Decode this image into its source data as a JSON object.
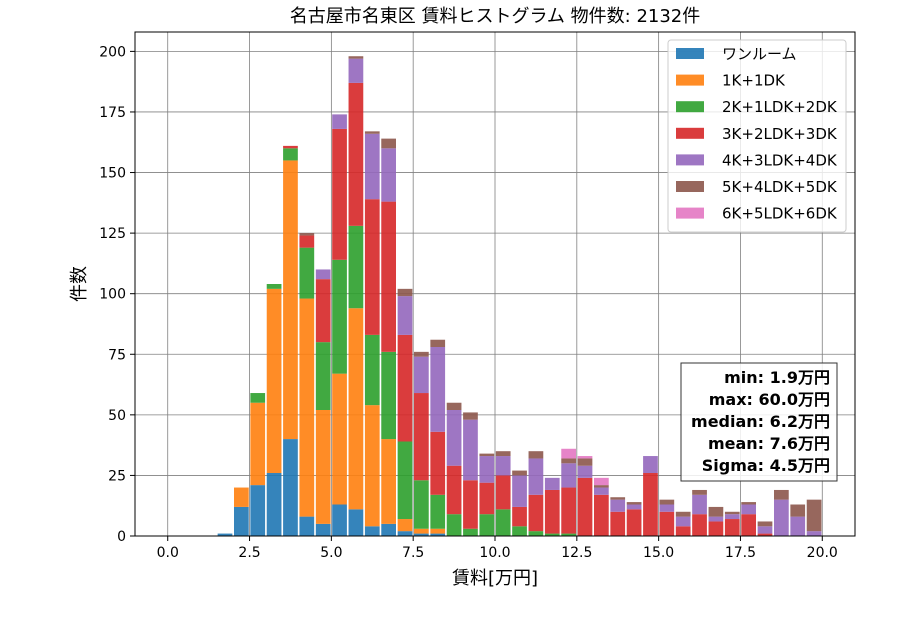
{
  "chart_data": {
    "type": "bar",
    "stacked": true,
    "title": "名古屋市名東区 賃料ヒストグラム  物件数: 2132件",
    "xlabel": "賃料[万円]",
    "ylabel": "件数",
    "xlim": [
      -1.0,
      21.0
    ],
    "ylim": [
      0,
      208
    ],
    "xticks": [
      0.0,
      2.5,
      5.0,
      7.5,
      10.0,
      12.5,
      15.0,
      17.5,
      20.0
    ],
    "xtick_labels": [
      "0.0",
      "2.5",
      "5.0",
      "7.5",
      "10.0",
      "12.5",
      "15.0",
      "17.5",
      "20.0"
    ],
    "yticks": [
      0,
      25,
      50,
      75,
      100,
      125,
      150,
      175,
      200
    ],
    "ytick_labels": [
      "0",
      "25",
      "50",
      "75",
      "100",
      "125",
      "150",
      "175",
      "200"
    ],
    "grid": true,
    "legend_position": "top-right",
    "bin_width": 0.5,
    "x": [
      1.0,
      1.5,
      2.0,
      2.5,
      3.0,
      3.5,
      4.0,
      4.5,
      5.0,
      5.5,
      6.0,
      6.5,
      7.0,
      7.5,
      8.0,
      8.5,
      9.0,
      9.5,
      10.0,
      10.5,
      11.0,
      11.5,
      12.0,
      12.5,
      13.0,
      13.5,
      14.0,
      14.5,
      15.0,
      15.5,
      16.0,
      16.5,
      17.0,
      17.5,
      18.0,
      18.5,
      19.0,
      19.5
    ],
    "series": [
      {
        "name": "ワンルーム",
        "color": "#1f77b4",
        "values": [
          0,
          1,
          12,
          21,
          26,
          40,
          8,
          5,
          13,
          11,
          4,
          5,
          2,
          1,
          1,
          0,
          0,
          0,
          0,
          0,
          0,
          0,
          0,
          0,
          0,
          0,
          0,
          0,
          0,
          0,
          0,
          0,
          0,
          0,
          0,
          0,
          0,
          0
        ]
      },
      {
        "name": "1K+1DK",
        "color": "#ff7f0e",
        "values": [
          0,
          0,
          8,
          34,
          76,
          115,
          90,
          47,
          54,
          83,
          50,
          35,
          5,
          2,
          2,
          0,
          0,
          0,
          0,
          0,
          0,
          0,
          0,
          0,
          0,
          0,
          0,
          0,
          0,
          0,
          0,
          0,
          0,
          0,
          0,
          0,
          0,
          0
        ]
      },
      {
        "name": "2K+1LDK+2DK",
        "color": "#2ca02c",
        "values": [
          0,
          0,
          0,
          4,
          2,
          5,
          21,
          28,
          47,
          34,
          29,
          36,
          32,
          20,
          14,
          9,
          3,
          9,
          11,
          4,
          2,
          1,
          1,
          0,
          0,
          0,
          0,
          0,
          0,
          0,
          0,
          0,
          0,
          0,
          0,
          0,
          0,
          0
        ]
      },
      {
        "name": "3K+2LDK+3DK",
        "color": "#d62728",
        "values": [
          0,
          0,
          0,
          0,
          0,
          1,
          5,
          26,
          54,
          59,
          56,
          62,
          44,
          36,
          26,
          20,
          20,
          13,
          14,
          8,
          15,
          18,
          19,
          24,
          17,
          10,
          11,
          26,
          10,
          4,
          9,
          6,
          7,
          9,
          1,
          0,
          0,
          0
        ]
      },
      {
        "name": "4K+3LDK+4DK",
        "color": "#9467bd",
        "values": [
          0,
          0,
          0,
          0,
          0,
          0,
          0,
          4,
          6,
          10,
          27,
          22,
          16,
          15,
          35,
          23,
          25,
          11,
          8,
          13,
          15,
          5,
          10,
          5,
          3,
          5,
          2,
          7,
          3,
          4,
          8,
          2,
          2,
          4,
          3,
          15,
          8,
          2
        ]
      },
      {
        "name": "5K+4LDK+5DK",
        "color": "#8c564b",
        "values": [
          0,
          0,
          0,
          0,
          0,
          0,
          1,
          0,
          0,
          1,
          1,
          4,
          3,
          2,
          3,
          3,
          3,
          1,
          2,
          2,
          3,
          0,
          2,
          3,
          1,
          1,
          1,
          0,
          2,
          2,
          2,
          4,
          1,
          1,
          2,
          4,
          5,
          13
        ]
      },
      {
        "name": "6K+5LDK+6DK",
        "color": "#e377c2",
        "values": [
          0,
          0,
          0,
          0,
          0,
          0,
          0,
          0,
          0,
          0,
          0,
          0,
          0,
          0,
          0,
          0,
          0,
          0,
          0,
          0,
          0,
          0,
          4,
          1,
          3,
          0,
          0,
          0,
          0,
          0,
          0,
          0,
          0,
          0,
          0,
          0,
          0,
          0
        ]
      }
    ],
    "stats": {
      "min": "min: 1.9万円",
      "max": "max: 60.0万円",
      "median": "median: 6.2万円",
      "mean": "mean: 7.6万円",
      "sigma": "Sigma: 4.5万円"
    }
  }
}
